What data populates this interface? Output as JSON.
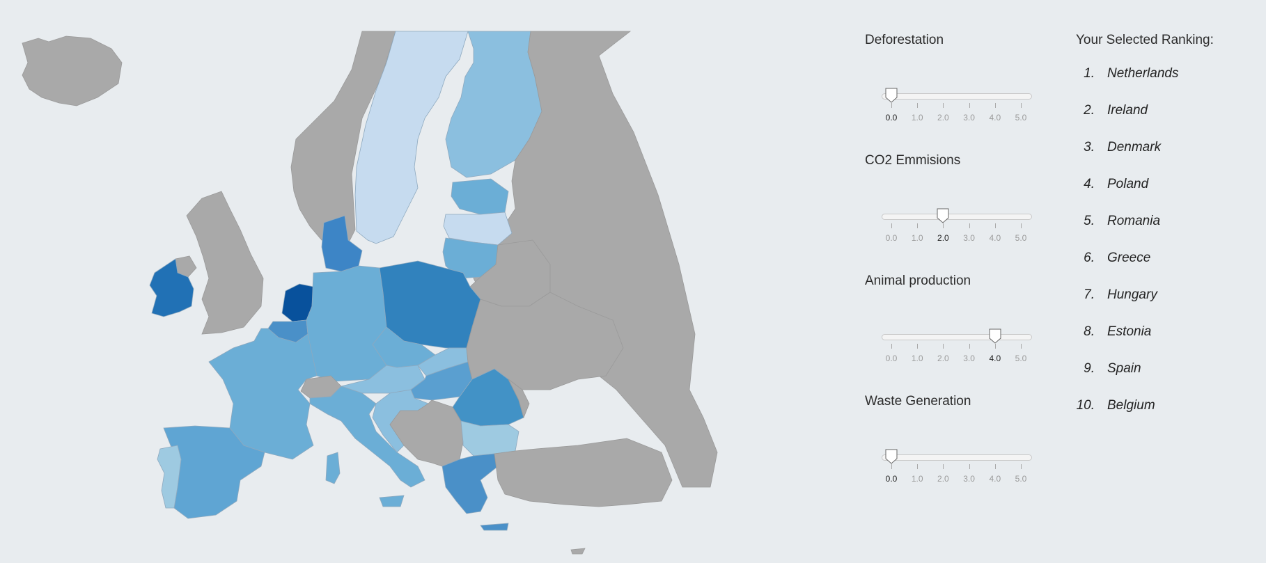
{
  "sliders": [
    {
      "label": "Deforestation",
      "value": 0.0,
      "min": 0,
      "max": 5
    },
    {
      "label": "CO2 Emmisions",
      "value": 2.0,
      "min": 0,
      "max": 5
    },
    {
      "label": "Animal production",
      "value": 4.0,
      "min": 0,
      "max": 5
    },
    {
      "label": "Waste Generation",
      "value": 0.0,
      "min": 0,
      "max": 5
    }
  ],
  "ticks": [
    "0.0",
    "1.0",
    "2.0",
    "3.0",
    "4.0",
    "5.0"
  ],
  "ranking": {
    "title": "Your Selected Ranking:",
    "items": [
      {
        "rank": "1.",
        "country": "Netherlands"
      },
      {
        "rank": "2.",
        "country": "Ireland"
      },
      {
        "rank": "3.",
        "country": "Denmark"
      },
      {
        "rank": "4.",
        "country": "Poland"
      },
      {
        "rank": "5.",
        "country": "Romania"
      },
      {
        "rank": "6.",
        "country": "Greece"
      },
      {
        "rank": "7.",
        "country": "Hungary"
      },
      {
        "rank": "8.",
        "country": "Estonia"
      },
      {
        "rank": "9.",
        "country": "Spain"
      },
      {
        "rank": "10.",
        "country": "Belgium"
      }
    ]
  },
  "colors": {
    "background": "#e8ecef",
    "non_eu": "#a9a9a9",
    "scale": [
      "#c6dbef",
      "#9ecae1",
      "#6baed6",
      "#4292c6",
      "#2171b5",
      "#08519c"
    ]
  }
}
